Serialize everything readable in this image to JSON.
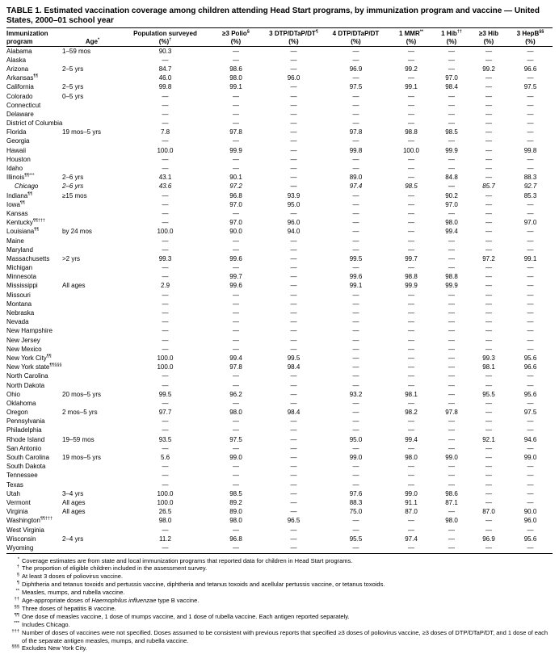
{
  "title": "TABLE 1. Estimated vaccination coverage among children attending Head Start programs, by immunization program and vaccine — United States, 2000–01 school year",
  "table": {
    "headers": {
      "col1_line1": "Immunization",
      "col1_line2": "program",
      "age_label": "Age",
      "age_sup": "*",
      "cols": [
        {
          "key": "population-surveyed",
          "label": "Population surveyed",
          "sup": "",
          "pct": "(%)",
          "pct_sup": "†"
        },
        {
          "key": "polio-3",
          "label": "≥3 Polio",
          "sup": "§",
          "pct": "(%)",
          "pct_sup": ""
        },
        {
          "key": "dtp-3",
          "label": "3 DTP/DTaP/DT",
          "sup": "¶",
          "pct": "(%)",
          "pct_sup": ""
        },
        {
          "key": "dtp-4",
          "label": "4 DTP/DTaP/DT",
          "sup": "",
          "pct": "(%)",
          "pct_sup": ""
        },
        {
          "key": "mmr-1",
          "label": "1 MMR",
          "sup": "**",
          "pct": "(%)",
          "pct_sup": ""
        },
        {
          "key": "hib-1",
          "label": "1 Hib",
          "sup": "††",
          "pct": "(%)",
          "pct_sup": ""
        },
        {
          "key": "hib-3",
          "label": "≥3 Hib",
          "sup": "",
          "pct": "(%)",
          "pct_sup": ""
        },
        {
          "key": "hepb-3",
          "label": "3 HepB",
          "sup": "§§",
          "pct": "(%)",
          "pct_sup": ""
        }
      ]
    },
    "rows": [
      {
        "program": "Alabama",
        "sup": "",
        "age": "1–59 mos",
        "indent": false,
        "values": [
          "90.3",
          "—",
          "—",
          "—",
          "—",
          "—",
          "—",
          "—"
        ]
      },
      {
        "program": "Alaska",
        "sup": "",
        "age": "",
        "indent": false,
        "values": [
          "—",
          "—",
          "—",
          "—",
          "—",
          "—",
          "—",
          "—"
        ]
      },
      {
        "program": "Arizona",
        "sup": "",
        "age": "2–5 yrs",
        "indent": false,
        "values": [
          "84.7",
          "98.6",
          "—",
          "96.9",
          "99.2",
          "—",
          "99.2",
          "96.6"
        ]
      },
      {
        "program": "Arkansas",
        "sup": "¶¶",
        "age": "",
        "indent": false,
        "values": [
          "46.0",
          "98.0",
          "96.0",
          "—",
          "—",
          "97.0",
          "—",
          "—"
        ]
      },
      {
        "program": "California",
        "sup": "",
        "age": "2–5 yrs",
        "indent": false,
        "values": [
          "99.8",
          "99.1",
          "—",
          "97.5",
          "99.1",
          "98.4",
          "—",
          "97.5"
        ]
      },
      {
        "program": "Colorado",
        "sup": "",
        "age": "0–5 yrs",
        "indent": false,
        "values": [
          "—",
          "—",
          "—",
          "—",
          "—",
          "—",
          "—",
          "—"
        ]
      },
      {
        "program": "Connecticut",
        "sup": "",
        "age": "",
        "indent": false,
        "values": [
          "—",
          "—",
          "—",
          "—",
          "—",
          "—",
          "—",
          "—"
        ]
      },
      {
        "program": "Delaware",
        "sup": "",
        "age": "",
        "indent": false,
        "values": [
          "—",
          "—",
          "—",
          "—",
          "—",
          "—",
          "—",
          "—"
        ]
      },
      {
        "program": "District of Columbia",
        "sup": "",
        "age": "",
        "indent": false,
        "values": [
          "—",
          "—",
          "—",
          "—",
          "—",
          "—",
          "—",
          "—"
        ]
      },
      {
        "program": "Florida",
        "sup": "",
        "age": "19 mos–5 yrs",
        "indent": false,
        "values": [
          "7.8",
          "97.8",
          "—",
          "97.8",
          "98.8",
          "98.5",
          "—",
          "—"
        ]
      },
      {
        "program": "Georgia",
        "sup": "",
        "age": "",
        "indent": false,
        "values": [
          "—",
          "—",
          "—",
          "—",
          "—",
          "—",
          "—",
          "—"
        ]
      },
      {
        "program": "Hawaii",
        "sup": "",
        "age": "",
        "indent": false,
        "values": [
          "100.0",
          "99.9",
          "—",
          "99.8",
          "100.0",
          "99.9",
          "—",
          "99.8"
        ]
      },
      {
        "program": "Houston",
        "sup": "",
        "age": "",
        "indent": false,
        "values": [
          "—",
          "—",
          "—",
          "—",
          "—",
          "—",
          "—",
          "—"
        ]
      },
      {
        "program": "Idaho",
        "sup": "",
        "age": "",
        "indent": false,
        "values": [
          "—",
          "—",
          "—",
          "—",
          "—",
          "—",
          "—",
          "—"
        ]
      },
      {
        "program": "Illinois",
        "sup": "¶¶***",
        "age": "2–6 yrs",
        "indent": false,
        "values": [
          "43.1",
          "90.1",
          "—",
          "89.0",
          "—",
          "84.8",
          "—",
          "88.3"
        ]
      },
      {
        "program": "Chicago",
        "sup": "",
        "age": "2–6 yrs",
        "indent": true,
        "values": [
          "43.6",
          "97.2",
          "—",
          "97.4",
          "98.5",
          "—",
          "85.7",
          "92.7"
        ]
      },
      {
        "program": "Indiana",
        "sup": "¶¶",
        "age": "≥15 mos",
        "indent": false,
        "values": [
          "—",
          "96.8",
          "93.9",
          "—",
          "—",
          "90.2",
          "—",
          "85.3"
        ]
      },
      {
        "program": "Iowa",
        "sup": "¶¶",
        "age": "",
        "indent": false,
        "values": [
          "—",
          "97.0",
          "95.0",
          "—",
          "—",
          "97.0",
          "—",
          "—"
        ]
      },
      {
        "program": "Kansas",
        "sup": "",
        "age": "",
        "indent": false,
        "values": [
          "—",
          "—",
          "—",
          "—",
          "—",
          "—",
          "—",
          "—"
        ]
      },
      {
        "program": "Kentucky",
        "sup": "¶¶†††",
        "age": "",
        "indent": false,
        "values": [
          "—",
          "97.0",
          "96.0",
          "—",
          "—",
          "98.0",
          "—",
          "97.0"
        ]
      },
      {
        "program": "Louisiana",
        "sup": "¶¶",
        "age": "by 24 mos",
        "indent": false,
        "values": [
          "100.0",
          "90.0",
          "94.0",
          "—",
          "—",
          "99.4",
          "—",
          "—"
        ]
      },
      {
        "program": "Maine",
        "sup": "",
        "age": "",
        "indent": false,
        "values": [
          "—",
          "—",
          "—",
          "—",
          "—",
          "—",
          "—",
          "—"
        ]
      },
      {
        "program": "Maryland",
        "sup": "",
        "age": "",
        "indent": false,
        "values": [
          "—",
          "—",
          "—",
          "—",
          "—",
          "—",
          "—",
          "—"
        ]
      },
      {
        "program": "Massachusetts",
        "sup": "",
        "age": ">2 yrs",
        "indent": false,
        "values": [
          "99.3",
          "99.6",
          "—",
          "99.5",
          "99.7",
          "—",
          "97.2",
          "99.1"
        ]
      },
      {
        "program": "Michigan",
        "sup": "",
        "age": "",
        "indent": false,
        "values": [
          "—",
          "—",
          "—",
          "—",
          "—",
          "—",
          "—",
          "—"
        ]
      },
      {
        "program": "Minnesota",
        "sup": "",
        "age": "",
        "indent": false,
        "values": [
          "—",
          "99.7",
          "—",
          "99.6",
          "98.8",
          "98.8",
          "—",
          "—"
        ]
      },
      {
        "program": "Mississippi",
        "sup": "",
        "age": "All ages",
        "indent": false,
        "values": [
          "2.9",
          "99.6",
          "—",
          "99.1",
          "99.9",
          "99.9",
          "—",
          "—"
        ]
      },
      {
        "program": "Missouri",
        "sup": "",
        "age": "",
        "indent": false,
        "values": [
          "—",
          "—",
          "—",
          "—",
          "—",
          "—",
          "—",
          "—"
        ]
      },
      {
        "program": "Montana",
        "sup": "",
        "age": "",
        "indent": false,
        "values": [
          "—",
          "—",
          "—",
          "—",
          "—",
          "—",
          "—",
          "—"
        ]
      },
      {
        "program": "Nebraska",
        "sup": "",
        "age": "",
        "indent": false,
        "values": [
          "—",
          "—",
          "—",
          "—",
          "—",
          "—",
          "—",
          "—"
        ]
      },
      {
        "program": "Nevada",
        "sup": "",
        "age": "",
        "indent": false,
        "values": [
          "—",
          "—",
          "—",
          "—",
          "—",
          "—",
          "—",
          "—"
        ]
      },
      {
        "program": "New Hampshire",
        "sup": "",
        "age": "",
        "indent": false,
        "values": [
          "—",
          "—",
          "—",
          "—",
          "—",
          "—",
          "—",
          "—"
        ]
      },
      {
        "program": "New Jersey",
        "sup": "",
        "age": "",
        "indent": false,
        "values": [
          "—",
          "—",
          "—",
          "—",
          "—",
          "—",
          "—",
          "—"
        ]
      },
      {
        "program": "New Mexico",
        "sup": "",
        "age": "",
        "indent": false,
        "values": [
          "—",
          "—",
          "—",
          "—",
          "—",
          "—",
          "—",
          "—"
        ]
      },
      {
        "program": "New York City",
        "sup": "¶¶",
        "age": "",
        "indent": false,
        "values": [
          "100.0",
          "99.4",
          "99.5",
          "—",
          "—",
          "—",
          "99.3",
          "95.6"
        ]
      },
      {
        "program": "New York state",
        "sup": "¶¶§§§",
        "age": "",
        "indent": false,
        "values": [
          "100.0",
          "97.8",
          "98.4",
          "—",
          "—",
          "—",
          "98.1",
          "96.6"
        ]
      },
      {
        "program": "North Carolina",
        "sup": "",
        "age": "",
        "indent": false,
        "values": [
          "—",
          "—",
          "—",
          "—",
          "—",
          "—",
          "—",
          "—"
        ]
      },
      {
        "program": "North Dakota",
        "sup": "",
        "age": "",
        "indent": false,
        "values": [
          "—",
          "—",
          "—",
          "—",
          "—",
          "—",
          "—",
          "—"
        ]
      },
      {
        "program": "Ohio",
        "sup": "",
        "age": "20 mos–5 yrs",
        "indent": false,
        "values": [
          "99.5",
          "96.2",
          "—",
          "93.2",
          "98.1",
          "—",
          "95.5",
          "95.6"
        ]
      },
      {
        "program": "Oklahoma",
        "sup": "",
        "age": "",
        "indent": false,
        "values": [
          "—",
          "—",
          "—",
          "—",
          "—",
          "—",
          "—",
          "—"
        ]
      },
      {
        "program": "Oregon",
        "sup": "",
        "age": "2 mos–5 yrs",
        "indent": false,
        "values": [
          "97.7",
          "98.0",
          "98.4",
          "—",
          "98.2",
          "97.8",
          "—",
          "97.5"
        ]
      },
      {
        "program": "Pennsylvania",
        "sup": "",
        "age": "",
        "indent": false,
        "values": [
          "—",
          "—",
          "—",
          "—",
          "—",
          "—",
          "—",
          "—"
        ]
      },
      {
        "program": "Philadelphia",
        "sup": "",
        "age": "",
        "indent": false,
        "values": [
          "—",
          "—",
          "—",
          "—",
          "—",
          "—",
          "—",
          "—"
        ]
      },
      {
        "program": "Rhode Island",
        "sup": "",
        "age": "19–59 mos",
        "indent": false,
        "values": [
          "93.5",
          "97.5",
          "—",
          "95.0",
          "99.4",
          "—",
          "92.1",
          "94.6"
        ]
      },
      {
        "program": "San Antonio",
        "sup": "",
        "age": "",
        "indent": false,
        "values": [
          "—",
          "—",
          "—",
          "—",
          "—",
          "—",
          "—",
          "—"
        ]
      },
      {
        "program": "South Carolina",
        "sup": "",
        "age": "19 mos–5 yrs",
        "indent": false,
        "values": [
          "5.6",
          "99.0",
          "—",
          "99.0",
          "98.0",
          "99.0",
          "—",
          "99.0"
        ]
      },
      {
        "program": "South Dakota",
        "sup": "",
        "age": "",
        "indent": false,
        "values": [
          "—",
          "—",
          "—",
          "—",
          "—",
          "—",
          "—",
          "—"
        ]
      },
      {
        "program": "Tennessee",
        "sup": "",
        "age": "",
        "indent": false,
        "values": [
          "—",
          "—",
          "—",
          "—",
          "—",
          "—",
          "—",
          "—"
        ]
      },
      {
        "program": "Texas",
        "sup": "",
        "age": "",
        "indent": false,
        "values": [
          "—",
          "—",
          "—",
          "—",
          "—",
          "—",
          "—",
          "—"
        ]
      },
      {
        "program": "Utah",
        "sup": "",
        "age": "3–4 yrs",
        "indent": false,
        "values": [
          "100.0",
          "98.5",
          "—",
          "97.6",
          "99.0",
          "98.6",
          "—",
          "—"
        ]
      },
      {
        "program": "Vermont",
        "sup": "",
        "age": "All ages",
        "indent": false,
        "values": [
          "100.0",
          "89.2",
          "—",
          "88.3",
          "91.1",
          "87.1",
          "—",
          "—"
        ]
      },
      {
        "program": "Virginia",
        "sup": "",
        "age": "All ages",
        "indent": false,
        "values": [
          "26.5",
          "89.0",
          "—",
          "75.0",
          "87.0",
          "—",
          "87.0",
          "90.0"
        ]
      },
      {
        "program": "Washington",
        "sup": "¶¶†††",
        "age": "",
        "indent": false,
        "values": [
          "98.0",
          "98.0",
          "96.5",
          "—",
          "—",
          "98.0",
          "—",
          "96.0"
        ]
      },
      {
        "program": "West Virginia",
        "sup": "",
        "age": "",
        "indent": false,
        "values": [
          "—",
          "—",
          "—",
          "—",
          "—",
          "—",
          "—",
          "—"
        ]
      },
      {
        "program": "Wisconsin",
        "sup": "",
        "age": "2–4 yrs",
        "indent": false,
        "values": [
          "11.2",
          "96.8",
          "—",
          "95.5",
          "97.4",
          "—",
          "96.9",
          "95.6"
        ]
      },
      {
        "program": "Wyoming",
        "sup": "",
        "age": "",
        "indent": false,
        "values": [
          "—",
          "—",
          "—",
          "—",
          "—",
          "—",
          "—",
          "—"
        ]
      }
    ]
  },
  "footnotes": [
    {
      "sym": "*",
      "parts": [
        {
          "t": "Coverage estimates are from state and local immunization programs that reported data for children in Head Start programs."
        }
      ]
    },
    {
      "sym": "†",
      "parts": [
        {
          "t": "The proportion of eligible children included in the assessment survey."
        }
      ]
    },
    {
      "sym": "§",
      "parts": [
        {
          "t": "At least 3 doses of poliovirus vaccine."
        }
      ]
    },
    {
      "sym": "¶",
      "parts": [
        {
          "t": "Diphtheria and tetanus toxoids and pertussis vaccine, diphtheria and tetanus toxoids and acellular pertussis vaccine, or tetanus toxoids."
        }
      ]
    },
    {
      "sym": "**",
      "parts": [
        {
          "t": "Measles, mumps, and rubella vaccine."
        }
      ]
    },
    {
      "sym": "††",
      "parts": [
        {
          "t": "Age-appropriate doses of "
        },
        {
          "t": "Haemophilus influenzae",
          "i": true
        },
        {
          "t": " type B vaccine."
        }
      ]
    },
    {
      "sym": "§§",
      "parts": [
        {
          "t": "Three doses of hepatitis B vaccine."
        }
      ]
    },
    {
      "sym": "¶¶",
      "parts": [
        {
          "t": "One dose of measles vaccine, 1 dose of mumps vaccine, and 1 dose of rubella vaccine. Each antigen reported separately."
        }
      ]
    },
    {
      "sym": "***",
      "parts": [
        {
          "t": "Includes Chicago."
        }
      ]
    },
    {
      "sym": "†††",
      "parts": [
        {
          "t": "Number of doses of vaccines were not specified. Doses assumed to be consistent with previous reports that specified ≥3 doses of poliovirus vaccine, ≥3 doses of DTP/DTaP/DT, and 1 dose of each of the separate antigen measles, mumps, and rubella vaccine."
        }
      ]
    },
    {
      "sym": "§§§",
      "parts": [
        {
          "t": "Excludes New York City."
        }
      ]
    }
  ]
}
